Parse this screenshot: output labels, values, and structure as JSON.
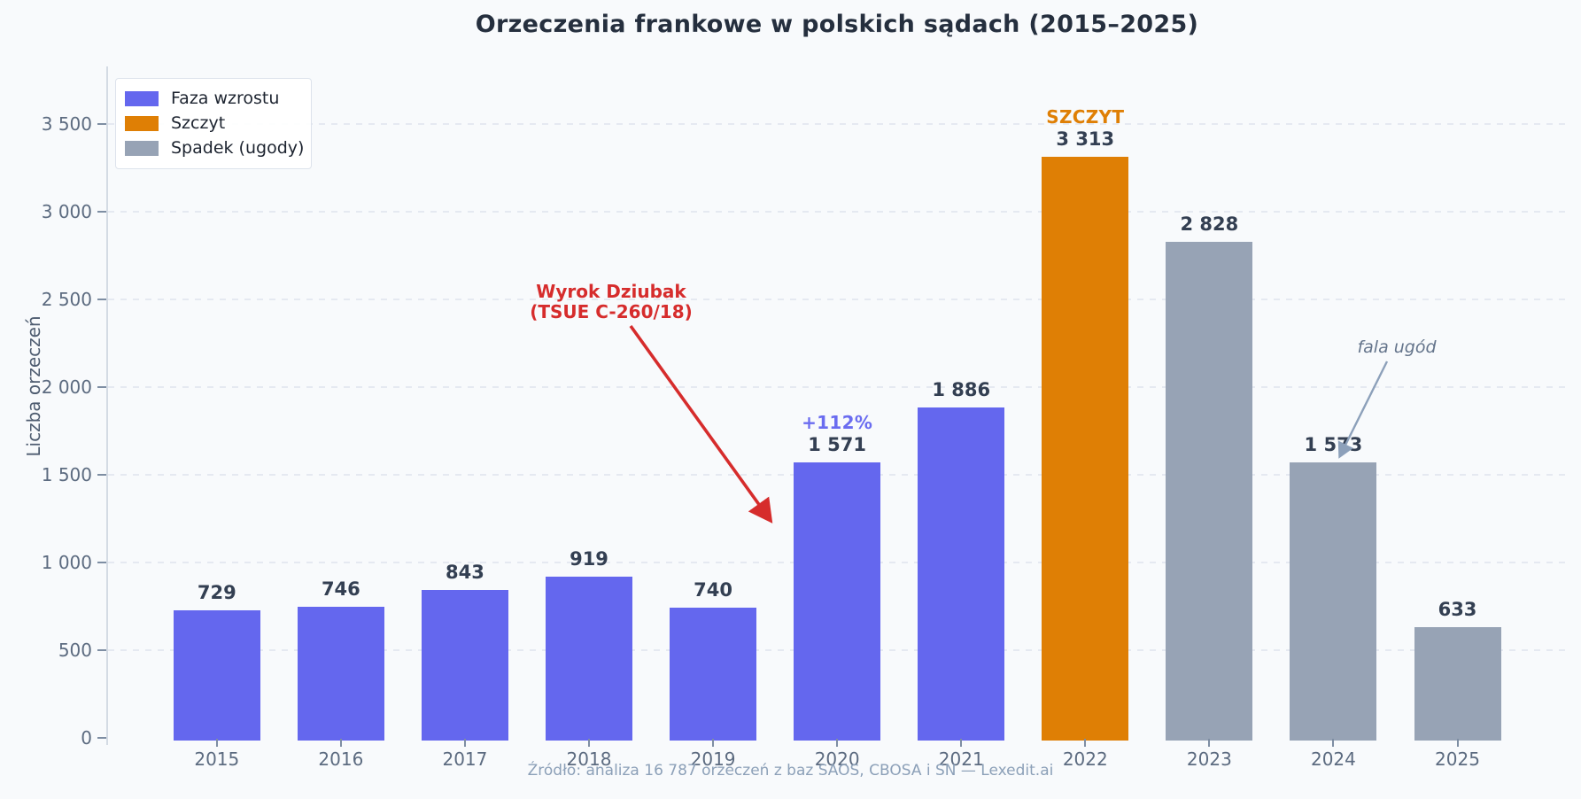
{
  "chart_data": {
    "type": "bar",
    "title": "Orzeczenia frankowe w polskich sądach (2015–2025)",
    "ylabel": "Liczba orzeczeń",
    "xlabel": "",
    "source": "Źródło: analiza 16 787 orzeczeń z baz SAOS, CBOSA i SN — Lexedit.ai",
    "categories": [
      "2015",
      "2016",
      "2017",
      "2018",
      "2019",
      "2020",
      "2021",
      "2022",
      "2023",
      "2024",
      "2025"
    ],
    "values": [
      729,
      746,
      843,
      919,
      740,
      1571,
      1886,
      3313,
      2828,
      1573,
      633
    ],
    "value_labels": [
      "729",
      "746",
      "843",
      "919",
      "740",
      "1 571",
      "1 886",
      "3 313",
      "2 828",
      "1 573",
      "633"
    ],
    "phases": [
      "growth",
      "growth",
      "growth",
      "growth",
      "growth",
      "growth",
      "growth",
      "peak",
      "decline",
      "decline",
      "decline"
    ],
    "badges": [
      null,
      null,
      null,
      null,
      null,
      "+112%",
      null,
      "SZCZYT",
      null,
      null,
      null
    ],
    "ylim": [
      0,
      3500
    ],
    "ytick_labels": [
      "0",
      "500",
      "1 000",
      "1 500",
      "2 000",
      "2 500",
      "3 000",
      "3 500"
    ],
    "ytick_values": [
      0,
      500,
      1000,
      1500,
      2000,
      2500,
      3000,
      3500
    ],
    "grid": "horizontal-dashed",
    "legend": {
      "position": "upper-left",
      "items": [
        {
          "label": "Faza wzrostu",
          "phase": "growth"
        },
        {
          "label": "Szczyt",
          "phase": "peak"
        },
        {
          "label": "Spadek (ugody)",
          "phase": "decline"
        }
      ]
    },
    "colors": {
      "growth": "#6467ee",
      "peak": "#df7f05",
      "decline": "#97a3b5",
      "annotation_red": "#d62c2c",
      "annotation_gray": "#64748b",
      "arrow_gray": "#8ca0ba",
      "badge_growth": "#6a6cf0",
      "badge_peak": "#df7f05"
    },
    "annotations": [
      {
        "id": "dziubak",
        "line1": "Wyrok Dziubak",
        "line2": "(TSUE C-260/18)",
        "target_category": "2020"
      },
      {
        "id": "fala-ugod",
        "text": "fala ugód",
        "target_category": "2024"
      }
    ]
  }
}
